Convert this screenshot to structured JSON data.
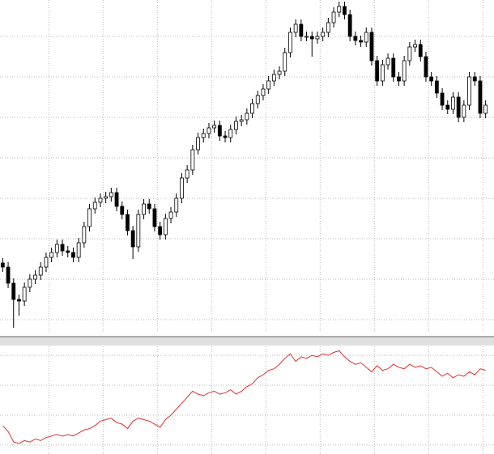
{
  "chart_data": [
    {
      "type": "candlestick",
      "xlim": [
        -0.5,
        89.5
      ],
      "xticks": [
        8.5,
        18.5,
        28.5,
        38.5,
        48.5,
        58.5,
        68.5,
        78.5,
        88.5
      ],
      "ylim": [
        -1.5,
        39.5
      ],
      "yticks": [
        0,
        5,
        10,
        15,
        20,
        25,
        30,
        35
      ],
      "grid": true,
      "up_color": "#ffffff",
      "down_color": "#000000",
      "edge_color": "#000000",
      "open": [
        7.0,
        6.5,
        4.5,
        2.5,
        2.3,
        4.0,
        5.0,
        5.5,
        6.5,
        7.7,
        8.3,
        9.3,
        8.5,
        8.3,
        7.7,
        9.5,
        11.5,
        13.7,
        14.5,
        15.0,
        15.2,
        15.7,
        14.0,
        13.0,
        11.0,
        9.0,
        13.0,
        14.3,
        13.7,
        11.5,
        10.5,
        12.5,
        13.3,
        15.0,
        17.5,
        18.5,
        21.0,
        22.5,
        23.0,
        23.7,
        24.0,
        22.7,
        22.5,
        23.5,
        24.5,
        24.7,
        25.5,
        26.7,
        27.7,
        28.5,
        29.5,
        30.3,
        30.7,
        33.0,
        35.5,
        36.5,
        35.0,
        35.0,
        34.7,
        35.0,
        35.5,
        36.7,
        38.0,
        38.7,
        37.7,
        35.0,
        34.5,
        34.3,
        35.5,
        32.0,
        29.5,
        31.5,
        32.3,
        30.0,
        29.5,
        32.0,
        33.7,
        34.0,
        32.5,
        30.0,
        29.5,
        28.0,
        26.5,
        26.0,
        27.5,
        25.0,
        26.5,
        30.0,
        29.5,
        25.5
      ],
      "high": [
        7.6,
        7.1,
        5.1,
        3.1,
        4.6,
        5.6,
        6.1,
        7.1,
        8.3,
        8.9,
        9.9,
        9.9,
        9.1,
        8.9,
        10.1,
        12.1,
        14.3,
        15.1,
        15.6,
        15.8,
        16.3,
        16.3,
        14.6,
        13.6,
        11.6,
        13.6,
        14.9,
        14.9,
        14.3,
        12.1,
        13.1,
        13.9,
        15.6,
        18.1,
        19.1,
        21.6,
        23.1,
        23.6,
        24.3,
        24.6,
        24.6,
        23.3,
        24.1,
        25.1,
        25.3,
        26.1,
        27.3,
        28.3,
        29.1,
        30.1,
        30.9,
        31.3,
        33.6,
        36.1,
        37.1,
        37.1,
        35.6,
        35.6,
        35.6,
        36.1,
        37.3,
        38.6,
        39.3,
        39.3,
        38.3,
        35.6,
        35.1,
        36.1,
        36.1,
        32.6,
        32.1,
        32.9,
        32.9,
        30.6,
        32.6,
        34.3,
        34.6,
        34.6,
        33.1,
        30.6,
        30.1,
        28.6,
        27.1,
        28.1,
        28.1,
        27.1,
        30.6,
        30.6,
        30.1,
        27.1
      ],
      "low": [
        5.9,
        3.9,
        -1.0,
        0.5,
        1.7,
        3.4,
        4.4,
        4.9,
        5.9,
        7.1,
        7.7,
        7.9,
        7.7,
        7.1,
        7.1,
        8.9,
        10.9,
        13.1,
        13.9,
        14.4,
        14.6,
        13.4,
        12.4,
        10.4,
        7.5,
        8.4,
        12.4,
        13.1,
        10.9,
        9.9,
        9.9,
        11.9,
        12.7,
        14.4,
        16.9,
        17.9,
        20.4,
        21.9,
        22.4,
        23.1,
        22.1,
        21.9,
        21.9,
        22.9,
        23.9,
        24.1,
        24.9,
        26.1,
        27.1,
        27.9,
        28.9,
        29.7,
        30.1,
        32.4,
        34.9,
        34.4,
        34.4,
        32.5,
        34.1,
        34.4,
        34.9,
        36.1,
        37.4,
        37.1,
        34.4,
        33.9,
        33.7,
        33.7,
        31.4,
        28.9,
        28.9,
        30.9,
        29.4,
        28.9,
        28.9,
        31.4,
        33.1,
        31.9,
        29.4,
        28.9,
        27.4,
        25.9,
        25.4,
        25.4,
        24.4,
        24.4,
        25.9,
        28.9,
        24.9,
        24.9
      ],
      "close": [
        6.5,
        4.5,
        2.5,
        2.3,
        4.0,
        5.0,
        5.5,
        6.5,
        7.7,
        8.3,
        9.3,
        8.5,
        8.3,
        7.7,
        9.5,
        11.5,
        13.7,
        14.5,
        15.0,
        15.2,
        15.7,
        14.0,
        13.0,
        11.0,
        9.0,
        13.0,
        14.3,
        13.7,
        11.5,
        10.5,
        12.5,
        13.3,
        15.0,
        17.5,
        18.5,
        21.0,
        22.5,
        23.0,
        23.7,
        24.0,
        22.7,
        22.5,
        23.5,
        24.5,
        24.7,
        25.5,
        26.7,
        27.7,
        28.5,
        29.5,
        30.3,
        30.7,
        33.0,
        35.5,
        36.5,
        35.0,
        35.0,
        34.7,
        35.0,
        35.5,
        36.7,
        38.0,
        38.7,
        37.7,
        35.0,
        34.5,
        34.3,
        35.5,
        32.0,
        29.5,
        31.5,
        32.3,
        30.0,
        29.5,
        32.0,
        33.7,
        34.0,
        32.5,
        30.0,
        29.5,
        28.0,
        26.5,
        26.0,
        27.5,
        25.0,
        26.5,
        30.0,
        29.5,
        25.5,
        26.5
      ]
    },
    {
      "type": "line",
      "xlim": [
        -0.5,
        89.5
      ],
      "xticks": [
        8.5,
        18.5,
        28.5,
        38.5,
        48.5,
        58.5,
        68.5,
        78.5,
        88.5
      ],
      "ylim": [
        -0.3,
        3.3
      ],
      "yticks": [
        0,
        1,
        2,
        3
      ],
      "grid": true,
      "series": [
        {
          "color": "#e03030",
          "values": [
            0.65,
            0.45,
            0.1,
            0.05,
            0.15,
            0.1,
            0.2,
            0.15,
            0.25,
            0.3,
            0.35,
            0.3,
            0.35,
            0.3,
            0.4,
            0.5,
            0.55,
            0.65,
            0.8,
            0.85,
            0.9,
            0.75,
            0.7,
            0.55,
            0.8,
            0.9,
            0.85,
            0.8,
            0.7,
            0.6,
            0.85,
            1.0,
            1.2,
            1.4,
            1.6,
            1.8,
            1.7,
            1.65,
            1.75,
            1.8,
            1.7,
            1.75,
            1.85,
            1.7,
            1.8,
            1.95,
            2.05,
            2.25,
            2.35,
            2.5,
            2.55,
            2.7,
            2.9,
            3.05,
            2.8,
            2.95,
            2.9,
            3.0,
            2.95,
            3.05,
            3.0,
            3.1,
            3.15,
            2.95,
            2.8,
            2.7,
            2.75,
            2.6,
            2.45,
            2.65,
            2.5,
            2.55,
            2.7,
            2.6,
            2.55,
            2.7,
            2.6,
            2.65,
            2.55,
            2.6,
            2.45,
            2.3,
            2.4,
            2.25,
            2.35,
            2.3,
            2.45,
            2.35,
            2.55,
            2.5
          ]
        }
      ]
    }
  ]
}
